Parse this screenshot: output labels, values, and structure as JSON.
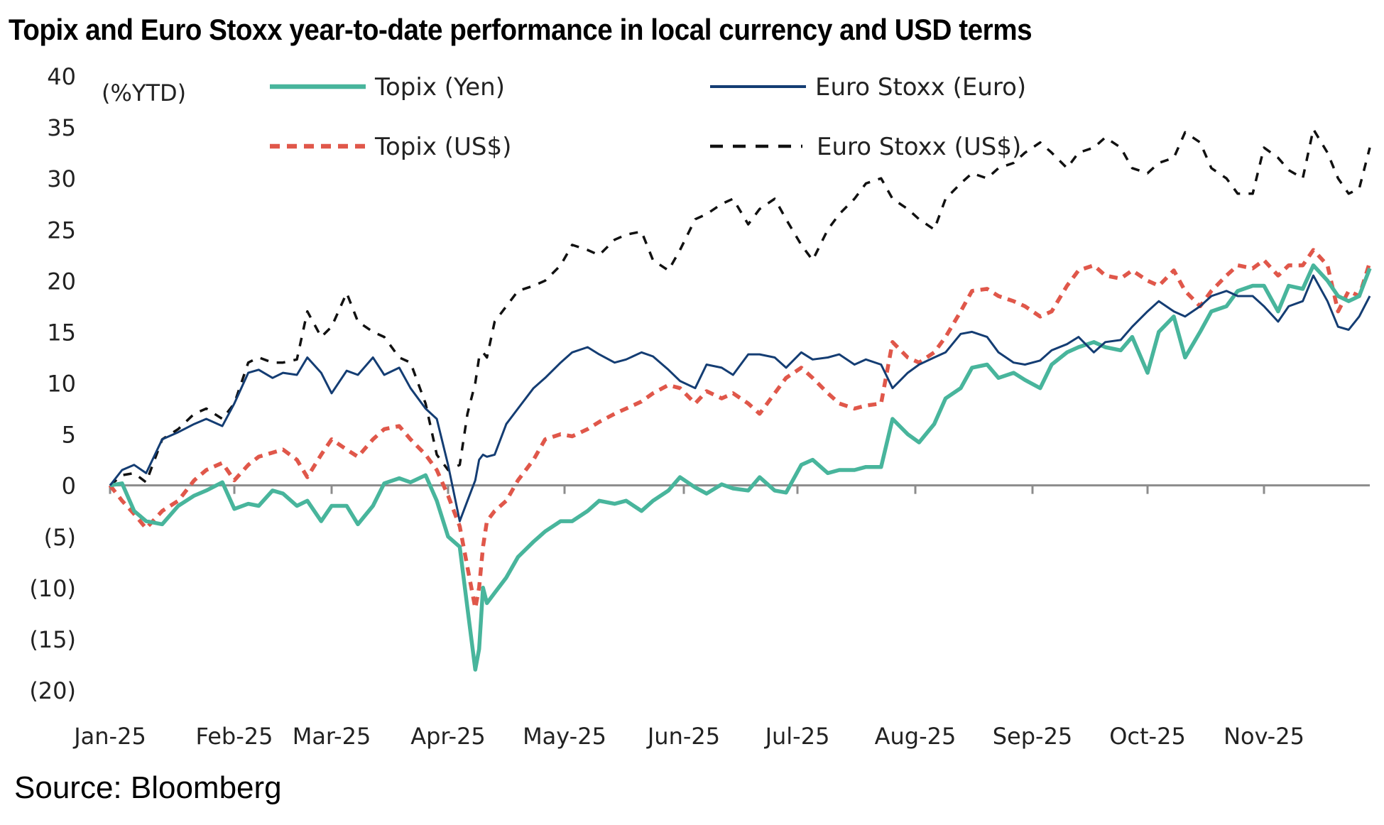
{
  "title": "Topix and Euro Stoxx year-to-date performance in local currency and USD terms",
  "source": "Source: Bloomberg",
  "chart_data": {
    "type": "line",
    "title": "Topix and Euro Stoxx year-to-date performance in local currency and USD terms",
    "ylabel": "(%YTD)",
    "xlabel": "",
    "ylim": [
      -20,
      40
    ],
    "yticks": [
      40,
      35,
      30,
      25,
      20,
      15,
      10,
      5,
      0,
      -5,
      -10,
      -15,
      -20
    ],
    "ytick_labels": [
      "40",
      "35",
      "30",
      "25",
      "20",
      "15",
      "10",
      "5",
      "0",
      "(5)",
      "(10)",
      "(15)",
      "(20)"
    ],
    "xlim_day": [
      0,
      334
    ],
    "xticks_day": [
      0,
      31,
      59,
      90,
      120,
      151,
      181,
      212,
      243,
      273,
      304
    ],
    "xtick_labels": [
      "Jan-25",
      "Feb-25",
      "Mar-25",
      "Apr-25",
      "May-25",
      "Jun-25",
      "Jul-25",
      "Aug-25",
      "Sep-25",
      "Oct-25",
      "Nov-25"
    ],
    "grid": false,
    "legend_position": "top",
    "x_day": [
      0,
      3,
      6,
      9,
      13,
      17,
      21,
      24,
      28,
      31,
      35,
      38,
      42,
      45,
      49,
      52,
      56,
      59,
      63,
      66,
      70,
      73,
      77,
      80,
      84,
      87,
      90,
      93,
      95,
      97,
      98,
      99,
      100,
      102,
      105,
      108,
      112,
      115,
      119,
      122,
      126,
      129,
      133,
      136,
      140,
      143,
      147,
      150,
      154,
      157,
      161,
      164,
      168,
      171,
      175,
      178,
      182,
      185,
      189,
      192,
      196,
      199,
      203,
      206,
      210,
      213,
      217,
      220,
      224,
      227,
      231,
      234,
      238,
      241,
      245,
      248,
      252,
      255,
      259,
      262,
      266,
      269,
      273,
      276,
      280,
      283,
      287,
      290,
      294,
      297,
      301,
      304,
      308,
      311,
      315,
      318,
      322,
      325,
      328,
      331,
      334
    ],
    "series": [
      {
        "name": "Topix (Yen)",
        "color": "#48b59c",
        "style": "solid-thick",
        "values": [
          0,
          0.2,
          -2.5,
          -3.5,
          -3.8,
          -2,
          -1,
          -0.5,
          0.3,
          -2.3,
          -1.8,
          -2,
          -0.5,
          -0.8,
          -2,
          -1.5,
          -3.5,
          -2,
          -2,
          -3.8,
          -2,
          0.2,
          0.7,
          0.3,
          1,
          -1.5,
          -5,
          -6,
          -12,
          -18,
          -16,
          -10,
          -11.5,
          -10.5,
          -9,
          -7,
          -5.5,
          -4.5,
          -3.5,
          -3.5,
          -2.5,
          -1.5,
          -1.8,
          -1.5,
          -2.5,
          -1.5,
          -0.5,
          0.8,
          -0.2,
          -0.8,
          0.1,
          -0.3,
          -0.5,
          0.8,
          -0.5,
          -0.7,
          2,
          2.5,
          1.2,
          1.5,
          1.5,
          1.8,
          1.8,
          6.5,
          5,
          4.2,
          6,
          8.5,
          9.5,
          11.5,
          11.8,
          10.5,
          11,
          10.3,
          9.5,
          11.8,
          13,
          13.5,
          14,
          13.5,
          13.2,
          14.5,
          11,
          15,
          16.5,
          12.5,
          15,
          17,
          17.5,
          19,
          19.5,
          19.5,
          17,
          19.5,
          19.2,
          21.5,
          20,
          18.5,
          18,
          18.5,
          21.2
        ]
      },
      {
        "name": "Euro Stoxx (Euro)",
        "color": "#143d73",
        "style": "solid-thin",
        "values": [
          0,
          1.5,
          2,
          1.2,
          4.5,
          5.2,
          6,
          6.5,
          5.8,
          8,
          11,
          11.3,
          10.5,
          11,
          10.8,
          12.5,
          11,
          9,
          11.2,
          10.8,
          12.5,
          10.8,
          11.5,
          9.5,
          7.5,
          6.5,
          2,
          -3.5,
          -1.5,
          0.5,
          2.5,
          3,
          2.8,
          3,
          6,
          7.5,
          9.5,
          10.5,
          12,
          13,
          13.5,
          12.8,
          12,
          12.3,
          13,
          12.6,
          11.3,
          10.2,
          9.5,
          11.8,
          11.5,
          10.8,
          12.8,
          12.8,
          12.5,
          11.5,
          13,
          12.3,
          12.5,
          12.8,
          11.8,
          12.3,
          11.8,
          9.5,
          11,
          11.8,
          12.5,
          13,
          14.8,
          15,
          14.5,
          13,
          12,
          11.8,
          12.2,
          13.2,
          13.8,
          14.5,
          13,
          14,
          14.2,
          15.5,
          17,
          18,
          17,
          16.5,
          17.5,
          18.5,
          19,
          18.5,
          18.5,
          17.5,
          16,
          17.5,
          18,
          20.5,
          18,
          15.5,
          15.2,
          16.5,
          18.5
        ]
      },
      {
        "name": "Topix (US$)",
        "color": "#e0574a",
        "style": "dashed-thick",
        "values": [
          0,
          -1.5,
          -2.8,
          -4.2,
          -2.5,
          -1.5,
          0.5,
          1.5,
          2.2,
          0.5,
          2,
          2.8,
          3.2,
          3.5,
          2.5,
          0.8,
          3,
          4.5,
          3.5,
          2.8,
          4.5,
          5.5,
          5.8,
          4.5,
          3,
          1.5,
          -1,
          -4,
          -8,
          -12,
          -10,
          -6,
          -3.5,
          -2.5,
          -1.5,
          0.5,
          2.5,
          4.5,
          5,
          4.8,
          5.5,
          6.2,
          7,
          7.5,
          8.2,
          9,
          9.8,
          9.5,
          8,
          9.2,
          8.5,
          9,
          8,
          7,
          9,
          10.5,
          11.5,
          10.5,
          9,
          8,
          7.5,
          7.8,
          8,
          14,
          12.5,
          12,
          13,
          14.5,
          17,
          19,
          19.2,
          18.5,
          18,
          17.5,
          16.5,
          17,
          19.5,
          21,
          21.5,
          20.5,
          20.2,
          21,
          20,
          19.5,
          21,
          19,
          17.5,
          19,
          20.5,
          21.5,
          21.2,
          22,
          20.5,
          21.5,
          21.5,
          23,
          21.5,
          17,
          19,
          18.5,
          21.8
        ]
      },
      {
        "name": "Euro Stoxx (US$)",
        "color": "#111111",
        "style": "dashed-thin",
        "values": [
          0,
          1,
          1.2,
          0.3,
          4.5,
          5.5,
          7,
          7.5,
          6.5,
          8,
          12,
          12.5,
          12,
          12,
          12.3,
          17,
          14.5,
          15.5,
          18.8,
          16,
          15,
          14.5,
          12.5,
          12,
          8,
          3,
          1.5,
          2,
          7,
          10,
          12.5,
          13,
          12.5,
          16,
          17.5,
          19,
          19.5,
          20,
          21.5,
          23.5,
          23,
          22.5,
          24,
          24.5,
          24.8,
          22,
          21,
          23,
          26,
          26.5,
          27.5,
          28,
          25.5,
          27,
          28,
          26,
          23.5,
          22,
          25,
          26.5,
          28,
          29.5,
          30,
          28,
          27,
          26,
          25,
          28,
          29.5,
          30.5,
          30,
          31,
          31.5,
          32.5,
          33.5,
          32.5,
          31,
          32.5,
          33,
          34,
          33,
          31,
          30.5,
          31.5,
          32,
          34.5,
          33.5,
          31,
          30,
          28.5,
          28.5,
          33,
          32,
          30.8,
          30,
          34.8,
          32.5,
          30,
          28.5,
          29,
          33
        ]
      }
    ],
    "zero_line": true
  },
  "legend": [
    {
      "label": "Topix (Yen)",
      "color": "#48b59c"
    },
    {
      "label": "Euro Stoxx (Euro)",
      "color": "#143d73"
    },
    {
      "label": "Topix (US$)",
      "color": "#e0574a"
    },
    {
      "label": "Euro Stoxx (US$)",
      "color": "#111111"
    }
  ]
}
